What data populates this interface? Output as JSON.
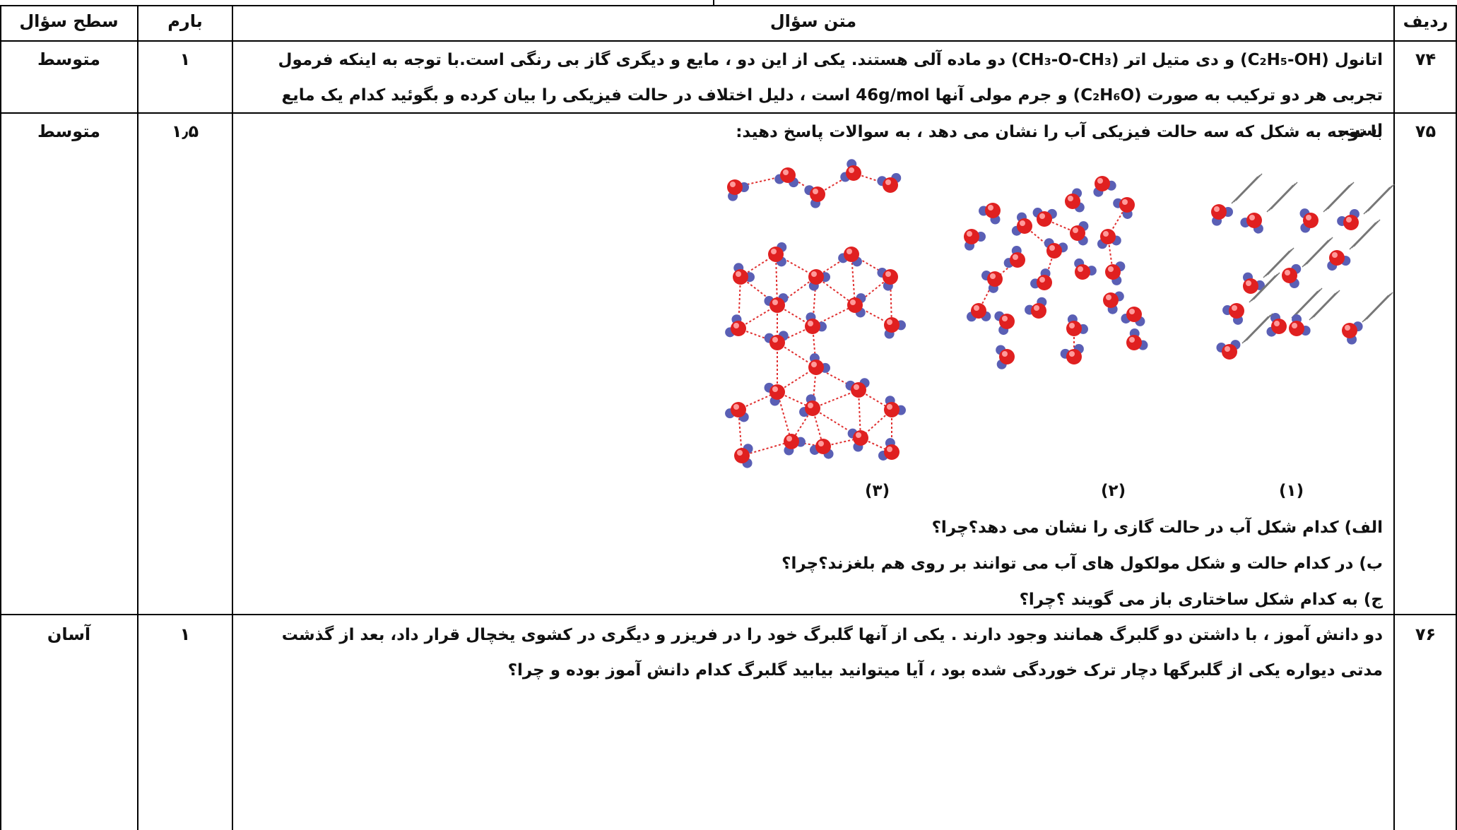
{
  "table": {
    "header": [
      "ردیف",
      "متن سؤال",
      "بارم",
      "سطح سؤال"
    ],
    "rows": [
      {
        "number": "۷۴",
        "text": "اتانول (C₂H₅-OH) و دی متیل اتر (CH₃-O-CH₃) دو ماده آلی هستند. یکی از این دو ، مایع و دیگری گاز بی رنگی است.با توجه به اینکه فرمول تجربی هر دو ترکیب به صورت (C₂H₆O) و جرم مولی آنها 46g/mol است ، دلیل اختلاف در حالت فیزیکی را بیان کرده و بگوئید کدام یک مایع است.",
        "score": "۱",
        "level": "متوسط"
      },
      {
        "number": "۷۵",
        "text": "با توجه به شکل که سه حالت فیزیکی آب را نشان می دهد ، به سوالات پاسخ دهید:",
        "figure_labels": [
          "(۱)",
          "(۲)",
          "(۳)"
        ],
        "subquestions": [
          "الف) کدام شکل آب در حالت گازی را نشان می دهد؟چرا؟",
          "ب) در کدام حالت و شکل مولکول های آب می توانند بر روی هم بلغزند؟چرا؟",
          "ج) به کدام شکل ساختاری باز می گویند ؟چرا؟"
        ],
        "score": "۱٫۵",
        "level": "متوسط"
      },
      {
        "number": "۷۶",
        "text": "دو دانش آموز ، با داشتن دو گلبرگ همانند وجود دارند . یکی از آنها گلبرگ خود را در فریزر و دیگری در کشوی یخچال قرار داد، بعد از گذشت مدتی دیواره یکی از گلبرگها دچار ترک خوردگی شده بود ، آیا میتوانید بیابید گلبرگ کدام دانش آموز بوده و چرا؟",
        "score": "۱",
        "level": "آسان"
      }
    ]
  }
}
